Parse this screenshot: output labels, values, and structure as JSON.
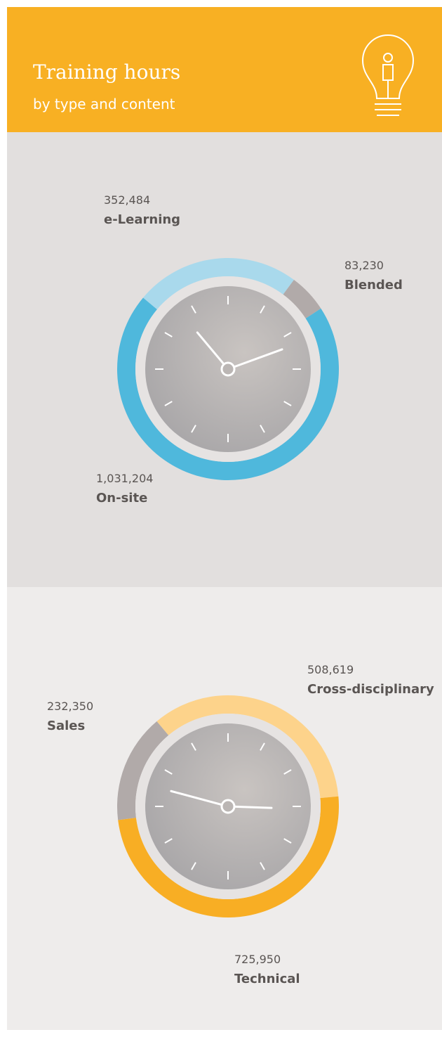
{
  "header": {
    "title": "Training hours",
    "subtitle": "by type and content"
  },
  "chart_data": [
    {
      "type": "donut",
      "categories": [
        "e-Learning",
        "Blended",
        "On-site"
      ],
      "values": [
        352484,
        83230,
        1031204
      ],
      "value_labels": [
        "352,484",
        "83,230",
        "1,031,204"
      ],
      "colors": [
        "#a9d9ec",
        "#b1aaa9",
        "#4fb8dc"
      ]
    },
    {
      "type": "donut",
      "categories": [
        "Cross-disciplinary",
        "Technical",
        "Sales"
      ],
      "values": [
        508619,
        725950,
        232350
      ],
      "value_labels": [
        "508,619",
        "725,950",
        "232,350"
      ],
      "colors": [
        "#fdd38b",
        "#f8ae24",
        "#b1aaa9"
      ]
    }
  ]
}
